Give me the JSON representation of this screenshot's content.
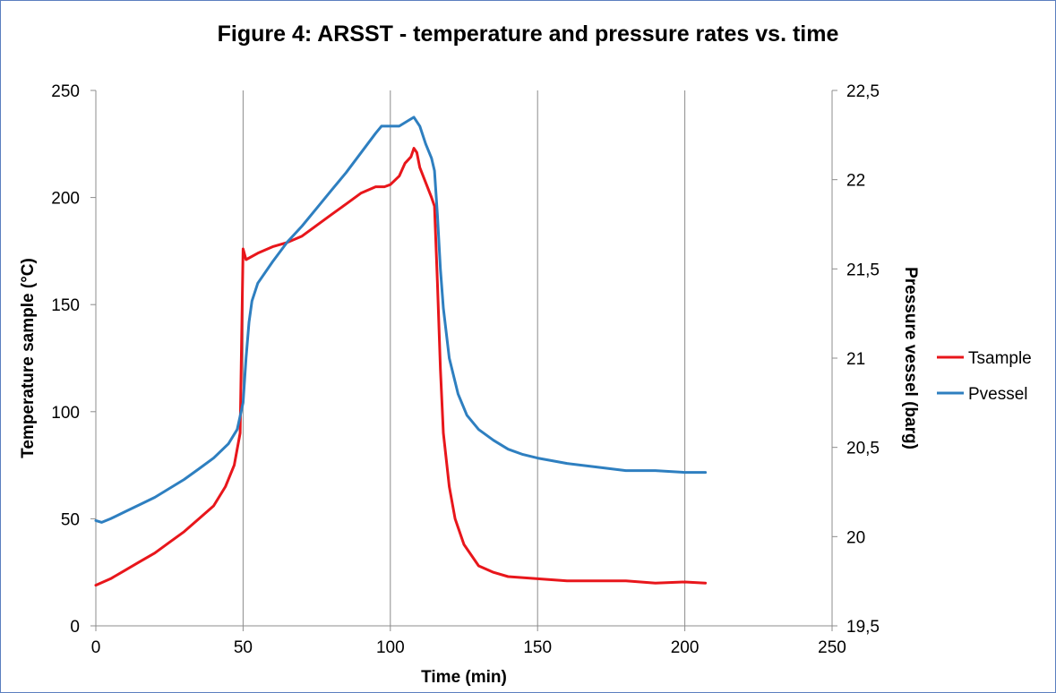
{
  "chart_data": {
    "type": "line",
    "title": "Figure 4: ARSST - temperature and pressure rates vs. time",
    "xlabel": "Time (min)",
    "ylabel_left": "Temperature sample (°C)",
    "ylabel_right": "Pressure vessel (barg)",
    "xlim": [
      0,
      250
    ],
    "ylim_left": [
      0,
      250
    ],
    "ylim_right": [
      19.5,
      22.5
    ],
    "x_ticks": [
      "0",
      "50",
      "100",
      "150",
      "200",
      "250"
    ],
    "y_left_ticks": [
      "0",
      "50",
      "100",
      "150",
      "200",
      "250"
    ],
    "y_right_ticks": [
      "19,5",
      "20",
      "20,5",
      "21",
      "21,5",
      "22",
      "22,5"
    ],
    "grid": "vertical",
    "legend": "right",
    "series": [
      {
        "name": "Tsample",
        "axis": "left",
        "color": "#e8161b",
        "points": [
          [
            0,
            19
          ],
          [
            5,
            22
          ],
          [
            10,
            26
          ],
          [
            15,
            30
          ],
          [
            20,
            34
          ],
          [
            25,
            39
          ],
          [
            30,
            44
          ],
          [
            35,
            50
          ],
          [
            40,
            56
          ],
          [
            44,
            65
          ],
          [
            47,
            75
          ],
          [
            49,
            90
          ],
          [
            50,
            176
          ],
          [
            51,
            171
          ],
          [
            55,
            174
          ],
          [
            60,
            177
          ],
          [
            65,
            179
          ],
          [
            70,
            182
          ],
          [
            75,
            187
          ],
          [
            80,
            192
          ],
          [
            85,
            197
          ],
          [
            90,
            202
          ],
          [
            95,
            205
          ],
          [
            98,
            205
          ],
          [
            100,
            206
          ],
          [
            103,
            210
          ],
          [
            105,
            216
          ],
          [
            107,
            219
          ],
          [
            108,
            223
          ],
          [
            109,
            221
          ],
          [
            110,
            214
          ],
          [
            112,
            207
          ],
          [
            114,
            200
          ],
          [
            115,
            196
          ],
          [
            116,
            160
          ],
          [
            117,
            120
          ],
          [
            118,
            90
          ],
          [
            120,
            65
          ],
          [
            122,
            50
          ],
          [
            125,
            38
          ],
          [
            130,
            28
          ],
          [
            135,
            25
          ],
          [
            140,
            23
          ],
          [
            150,
            22
          ],
          [
            160,
            21
          ],
          [
            170,
            21
          ],
          [
            180,
            21
          ],
          [
            190,
            20
          ],
          [
            200,
            20.5
          ],
          [
            207,
            20
          ]
        ]
      },
      {
        "name": "Pvessel",
        "axis": "right",
        "color": "#2e7fc0",
        "points": [
          [
            0,
            20.09
          ],
          [
            2,
            20.08
          ],
          [
            5,
            20.1
          ],
          [
            10,
            20.14
          ],
          [
            15,
            20.18
          ],
          [
            20,
            20.22
          ],
          [
            25,
            20.27
          ],
          [
            30,
            20.32
          ],
          [
            35,
            20.38
          ],
          [
            40,
            20.44
          ],
          [
            45,
            20.52
          ],
          [
            48,
            20.6
          ],
          [
            50,
            20.75
          ],
          [
            51,
            21.0
          ],
          [
            52,
            21.2
          ],
          [
            53,
            21.32
          ],
          [
            55,
            21.42
          ],
          [
            60,
            21.54
          ],
          [
            65,
            21.65
          ],
          [
            70,
            21.74
          ],
          [
            75,
            21.84
          ],
          [
            80,
            21.94
          ],
          [
            85,
            22.04
          ],
          [
            90,
            22.15
          ],
          [
            95,
            22.26
          ],
          [
            97,
            22.3
          ],
          [
            100,
            22.3
          ],
          [
            103,
            22.3
          ],
          [
            106,
            22.33
          ],
          [
            108,
            22.35
          ],
          [
            110,
            22.3
          ],
          [
            112,
            22.2
          ],
          [
            114,
            22.12
          ],
          [
            115,
            22.05
          ],
          [
            116,
            21.8
          ],
          [
            117,
            21.5
          ],
          [
            118,
            21.28
          ],
          [
            120,
            21.0
          ],
          [
            123,
            20.8
          ],
          [
            126,
            20.68
          ],
          [
            130,
            20.6
          ],
          [
            135,
            20.54
          ],
          [
            140,
            20.49
          ],
          [
            145,
            20.46
          ],
          [
            150,
            20.44
          ],
          [
            160,
            20.41
          ],
          [
            170,
            20.39
          ],
          [
            180,
            20.37
          ],
          [
            190,
            20.37
          ],
          [
            200,
            20.36
          ],
          [
            207,
            20.36
          ]
        ]
      }
    ]
  }
}
